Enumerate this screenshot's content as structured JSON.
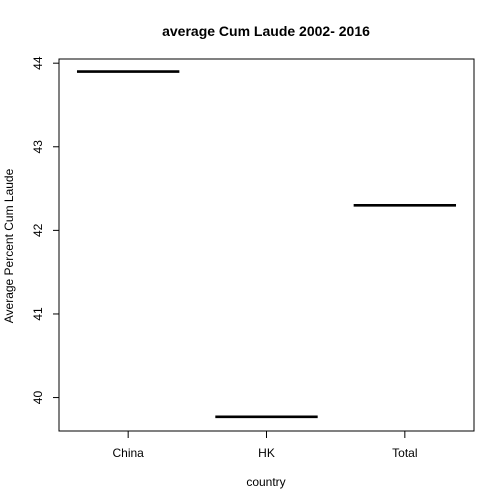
{
  "chart_data": {
    "type": "bar",
    "title": "average Cum Laude 2002- 2016",
    "xlabel": "country",
    "ylabel": "Average Percent Cum Laude",
    "categories": [
      "China",
      "HK",
      "Total"
    ],
    "values": [
      43.9,
      39.77,
      42.3
    ],
    "ylim": [
      39.6,
      44.05
    ],
    "yticks": [
      "40",
      "41",
      "42",
      "43",
      "44"
    ],
    "grid": false,
    "legend": "none",
    "mark_style": "horizontal-segment",
    "colors": {
      "line": "#000000",
      "frame": "#000000",
      "background": "#ffffff"
    }
  }
}
